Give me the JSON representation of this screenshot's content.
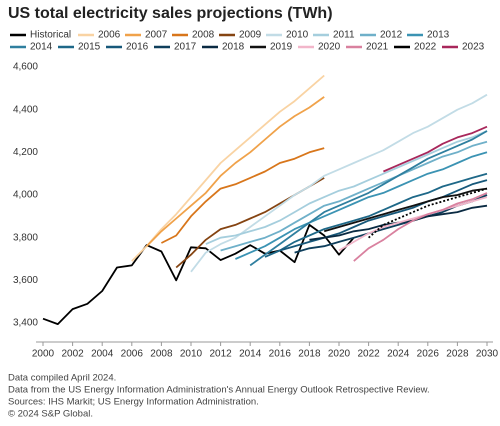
{
  "chart_data": {
    "type": "line",
    "title": "US total electricity sales projections (TWh)",
    "notes": [
      "Data compiled April 2024.",
      "Data from the US Energy Information Administration's Annual Energy Outlook Retrospective Review.",
      "Sources: IHS Markit; US Energy Information Administration.",
      "© 2024 S&P Global."
    ],
    "x": [
      2000,
      2001,
      2002,
      2003,
      2004,
      2005,
      2006,
      2007,
      2008,
      2009,
      2010,
      2011,
      2012,
      2013,
      2014,
      2015,
      2016,
      2017,
      2018,
      2019,
      2020,
      2021,
      2022,
      2023,
      2024,
      2025,
      2026,
      2027,
      2028,
      2029,
      2030
    ],
    "xlim": [
      2000,
      2030
    ],
    "xticks": [
      2000,
      2002,
      2004,
      2006,
      2008,
      2010,
      2012,
      2014,
      2016,
      2018,
      2020,
      2022,
      2024,
      2026,
      2028,
      2030
    ],
    "ylim": [
      3400,
      4600
    ],
    "yticks": [
      {
        "value": 3400,
        "label": "3,400"
      },
      {
        "value": 3600,
        "label": "3,600"
      },
      {
        "value": 3800,
        "label": "3,800"
      },
      {
        "value": 4000,
        "label": "4,000"
      },
      {
        "value": 4200,
        "label": "4,200"
      },
      {
        "value": 4400,
        "label": "4,400"
      },
      {
        "value": 4600,
        "label": "4,600"
      }
    ],
    "series": [
      {
        "name": "Historical",
        "color": "#000000",
        "values": [
          3420,
          3395,
          3465,
          3490,
          3550,
          3660,
          3670,
          3765,
          3735,
          3600,
          3755,
          3750,
          3695,
          3725,
          3765,
          3725,
          3740,
          3685,
          3860,
          3810,
          3720,
          3800,
          null,
          null,
          null,
          null,
          null,
          null,
          null,
          null,
          null
        ]
      },
      {
        "name": "2006",
        "color": "#f9d3a3",
        "values": [
          null,
          null,
          null,
          null,
          null,
          null,
          3690,
          3760,
          3840,
          3910,
          3990,
          4070,
          4150,
          4210,
          4270,
          4330,
          4390,
          4440,
          4500,
          4560,
          null,
          null,
          null,
          null,
          null,
          null,
          null,
          null,
          null,
          null,
          null
        ]
      },
      {
        "name": "2007",
        "color": "#f0a24a",
        "values": [
          null,
          null,
          null,
          null,
          null,
          null,
          null,
          3760,
          3830,
          3890,
          3950,
          4010,
          4090,
          4150,
          4200,
          4260,
          4320,
          4370,
          4410,
          4460,
          null,
          null,
          null,
          null,
          null,
          null,
          null,
          null,
          null,
          null,
          null
        ]
      },
      {
        "name": "2008",
        "color": "#d8761b",
        "values": [
          null,
          null,
          null,
          null,
          null,
          null,
          null,
          null,
          3775,
          3810,
          3900,
          3970,
          4030,
          4050,
          4080,
          4110,
          4150,
          4170,
          4200,
          4220,
          null,
          null,
          null,
          null,
          null,
          null,
          null,
          null,
          null,
          null,
          null
        ]
      },
      {
        "name": "2009",
        "color": "#854412",
        "values": [
          null,
          null,
          null,
          null,
          null,
          null,
          null,
          null,
          null,
          3660,
          3720,
          3790,
          3840,
          3860,
          3890,
          3920,
          3960,
          4000,
          4040,
          4080,
          null,
          null,
          null,
          null,
          null,
          null,
          null,
          null,
          null,
          null,
          null
        ]
      },
      {
        "name": "2010",
        "color": "#c2dce6",
        "values": [
          null,
          null,
          null,
          null,
          null,
          null,
          null,
          null,
          null,
          null,
          3640,
          3730,
          3770,
          3800,
          3850,
          3900,
          3950,
          4000,
          4040,
          4090,
          4120,
          4150,
          4180,
          4210,
          4250,
          4290,
          4320,
          4360,
          4400,
          4430,
          4470
        ]
      },
      {
        "name": "2011",
        "color": "#a5cedd",
        "values": [
          null,
          null,
          null,
          null,
          null,
          null,
          null,
          null,
          null,
          null,
          null,
          3770,
          3800,
          3810,
          3830,
          3850,
          3880,
          3920,
          3960,
          3990,
          4020,
          4040,
          4070,
          4100,
          4130,
          4160,
          4190,
          4220,
          4250,
          4270,
          4300
        ]
      },
      {
        "name": "2012",
        "color": "#6fb0c9",
        "values": [
          null,
          null,
          null,
          null,
          null,
          null,
          null,
          null,
          null,
          null,
          null,
          null,
          3740,
          3760,
          3780,
          3800,
          3830,
          3870,
          3910,
          3950,
          3970,
          4000,
          4030,
          4060,
          4090,
          4120,
          4150,
          4180,
          4200,
          4230,
          4250
        ]
      },
      {
        "name": "2013",
        "color": "#3b93b3",
        "values": [
          null,
          null,
          null,
          null,
          null,
          null,
          null,
          null,
          null,
          null,
          null,
          null,
          null,
          3700,
          3730,
          3760,
          3800,
          3840,
          3870,
          3900,
          3930,
          3960,
          3990,
          4010,
          4040,
          4070,
          4100,
          4120,
          4150,
          4180,
          4200
        ]
      },
      {
        "name": "2014",
        "color": "#2f7f9f",
        "values": [
          null,
          null,
          null,
          null,
          null,
          null,
          null,
          null,
          null,
          null,
          null,
          null,
          null,
          null,
          3670,
          3720,
          3770,
          3820,
          3870,
          3920,
          3950,
          3980,
          4010,
          4050,
          4090,
          4130,
          4170,
          4200,
          4230,
          4260,
          4300
        ]
      },
      {
        "name": "2015",
        "color": "#1e6888",
        "values": [
          null,
          null,
          null,
          null,
          null,
          null,
          null,
          null,
          null,
          null,
          null,
          null,
          null,
          null,
          null,
          3710,
          3740,
          3780,
          3810,
          3840,
          3860,
          3880,
          3900,
          3930,
          3960,
          3990,
          4010,
          4040,
          4060,
          4080,
          4100
        ]
      },
      {
        "name": "2016",
        "color": "#17587a",
        "values": [
          null,
          null,
          null,
          null,
          null,
          null,
          null,
          null,
          null,
          null,
          null,
          null,
          null,
          null,
          null,
          null,
          3740,
          3760,
          3780,
          3800,
          3820,
          3850,
          3880,
          3900,
          3920,
          3940,
          3970,
          3990,
          4020,
          4050,
          4070
        ]
      },
      {
        "name": "2017",
        "color": "#0f3f5c",
        "values": [
          null,
          null,
          null,
          null,
          null,
          null,
          null,
          null,
          null,
          null,
          null,
          null,
          null,
          null,
          null,
          null,
          null,
          3730,
          3750,
          3760,
          3780,
          3800,
          3820,
          3840,
          3860,
          3880,
          3900,
          3920,
          3950,
          3970,
          4000
        ]
      },
      {
        "name": "2018",
        "color": "#0a2a42",
        "values": [
          null,
          null,
          null,
          null,
          null,
          null,
          null,
          null,
          null,
          null,
          null,
          null,
          null,
          null,
          null,
          null,
          null,
          null,
          3790,
          3800,
          3810,
          3830,
          3840,
          3860,
          3870,
          3880,
          3900,
          3910,
          3920,
          3940,
          3950
        ]
      },
      {
        "name": "2019",
        "color": "#111111",
        "values": [
          null,
          null,
          null,
          null,
          null,
          null,
          null,
          null,
          null,
          null,
          null,
          null,
          null,
          null,
          null,
          null,
          null,
          null,
          null,
          3830,
          3850,
          3870,
          3890,
          3910,
          3930,
          3950,
          3970,
          3990,
          4000,
          4020,
          4030
        ]
      },
      {
        "name": "2020",
        "color": "#f2b6ca",
        "values": [
          null,
          null,
          null,
          null,
          null,
          null,
          null,
          null,
          null,
          null,
          null,
          null,
          null,
          null,
          null,
          null,
          null,
          null,
          null,
          null,
          3740,
          3780,
          3820,
          3850,
          3870,
          3890,
          3910,
          3930,
          3950,
          3970,
          3990
        ]
      },
      {
        "name": "2021",
        "color": "#d9819f",
        "values": [
          null,
          null,
          null,
          null,
          null,
          null,
          null,
          null,
          null,
          null,
          null,
          null,
          null,
          null,
          null,
          null,
          null,
          null,
          null,
          null,
          null,
          3690,
          3750,
          3790,
          3840,
          3880,
          3910,
          3930,
          3960,
          3980,
          4010
        ]
      },
      {
        "name": "2022",
        "color": "#000000",
        "dashed": true,
        "values": [
          null,
          null,
          null,
          null,
          null,
          null,
          null,
          null,
          null,
          null,
          null,
          null,
          null,
          null,
          null,
          null,
          null,
          null,
          null,
          null,
          null,
          null,
          3800,
          3860,
          3890,
          3920,
          3950,
          3970,
          3990,
          4010,
          4030
        ]
      },
      {
        "name": "2023",
        "color": "#a8275b",
        "values": [
          null,
          null,
          null,
          null,
          null,
          null,
          null,
          null,
          null,
          null,
          null,
          null,
          null,
          null,
          null,
          null,
          null,
          null,
          null,
          null,
          null,
          null,
          null,
          4110,
          4140,
          4170,
          4200,
          4240,
          4270,
          4290,
          4320
        ]
      }
    ]
  }
}
